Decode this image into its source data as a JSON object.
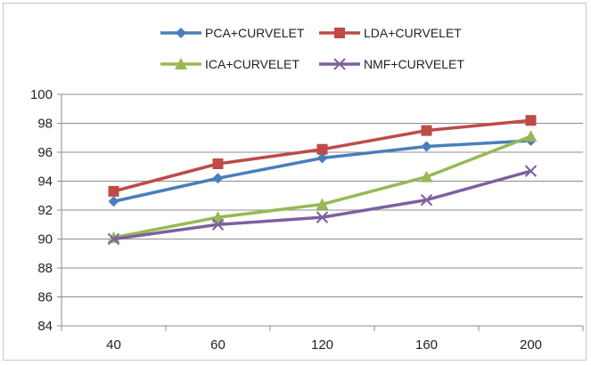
{
  "chart_data": {
    "type": "line",
    "title": "",
    "xlabel": "",
    "ylabel": "",
    "categories": [
      "40",
      "60",
      "120",
      "160",
      "200"
    ],
    "ylim": [
      84,
      100
    ],
    "yticks": [
      84,
      86,
      88,
      90,
      92,
      94,
      96,
      98,
      100
    ],
    "grid": true,
    "legend_position": "top",
    "series": [
      {
        "name": "PCA+CURVELET",
        "color": "#4a7ebb",
        "marker": "diamond",
        "values": [
          92.6,
          94.2,
          95.6,
          96.4,
          96.8
        ]
      },
      {
        "name": "LDA+CURVELET",
        "color": "#be4b48",
        "marker": "square",
        "values": [
          93.3,
          95.2,
          96.2,
          97.5,
          98.2
        ]
      },
      {
        "name": "ICA+CURVELET",
        "color": "#98b954",
        "marker": "triangle",
        "values": [
          90.1,
          91.5,
          92.4,
          94.3,
          97.1
        ]
      },
      {
        "name": "NMF+CURVELET",
        "color": "#7d60a0",
        "marker": "x",
        "values": [
          90.0,
          91.0,
          91.5,
          92.7,
          94.7
        ]
      }
    ]
  }
}
